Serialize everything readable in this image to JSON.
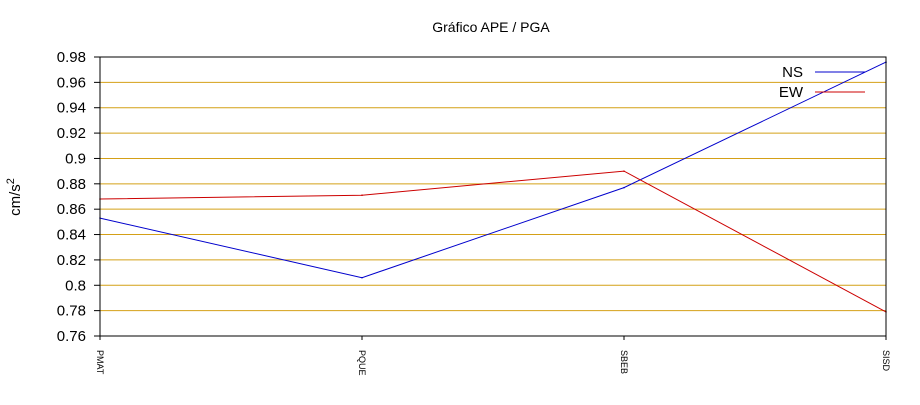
{
  "chart_data": {
    "type": "line",
    "title": "Gráfico  APE / PGA",
    "xlabel": "",
    "ylabel": "cm/s",
    "ylabel_superscript": "2",
    "categories": [
      "PMAT",
      "PQUE",
      "SBEB",
      "SISD"
    ],
    "series": [
      {
        "name": "NS",
        "color": "#0000cc",
        "values": [
          0.853,
          0.806,
          0.877,
          0.976
        ]
      },
      {
        "name": "EW",
        "color": "#cc0000",
        "values": [
          0.868,
          0.871,
          0.89,
          0.779
        ]
      }
    ],
    "ylim": [
      0.76,
      0.98
    ],
    "yticks": [
      "0.76",
      "0.78",
      "0.8",
      "0.82",
      "0.84",
      "0.86",
      "0.88",
      "0.9",
      "0.92",
      "0.94",
      "0.96",
      "0.98"
    ],
    "grid": true,
    "grid_color": "#d4a017",
    "legend": "top-right"
  }
}
